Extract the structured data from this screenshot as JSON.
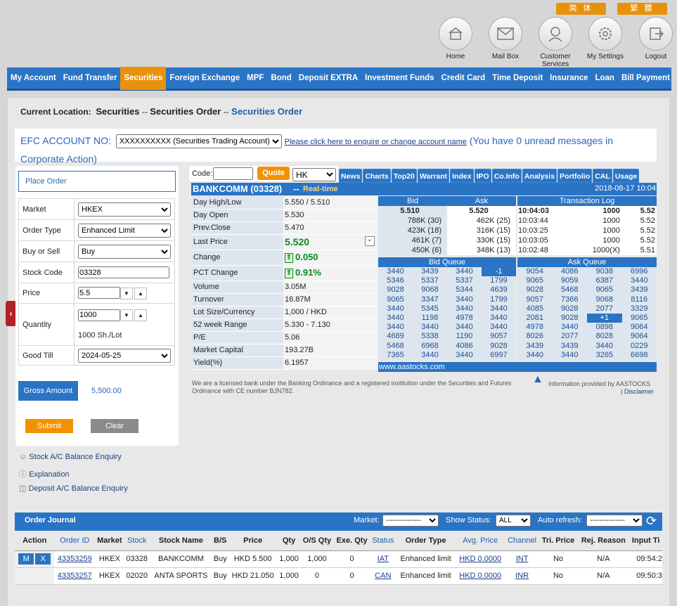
{
  "lang": [
    "简 体",
    "繁 體"
  ],
  "top_icons": [
    {
      "icon": "home-icon",
      "label": "Home"
    },
    {
      "icon": "mailbox-icon",
      "label": "Mail Box"
    },
    {
      "icon": "customer-service-icon",
      "label": "Customer Services"
    },
    {
      "icon": "settings-icon",
      "label": "My Settings"
    },
    {
      "icon": "logout-icon",
      "label": "Logout"
    }
  ],
  "nav": [
    "My Account",
    "Fund Transfer",
    "Securities",
    "Foreign Exchange",
    "MPF",
    "Bond",
    "Deposit EXTRA",
    "Investment Funds",
    "Credit Card",
    "Time Deposit",
    "Insurance",
    "Loan",
    "Bill Payment"
  ],
  "nav_active": "Securities",
  "location": {
    "label": "Current Location:",
    "l1": "Securities",
    "sep": "--",
    "l2": "Securities Order",
    "current": "Securities Order"
  },
  "efc": {
    "label": "EFC ACCOUNT NO:",
    "account": "XXXXXXXXXX (Securities Trading Account)",
    "link": "Please click here to enquire or change account name",
    "msg_pre": "(You have",
    "msg_count": "0",
    "msg_post": "unread messages in Corporate Action)"
  },
  "order": {
    "title": "Place Order",
    "market_label": "Market",
    "market": "HKEX",
    "type_label": "Order Type",
    "type": "Enhanced Limit",
    "bs_label": "Buy or Sell",
    "bs": "Buy",
    "code_label": "Stock Code",
    "code": "03328",
    "price_label": "Price",
    "price": "5.5",
    "qty_label": "Quantity",
    "qty": "1000",
    "lot": "1000 Sh./Lot",
    "till_label": "Good Till",
    "till": "2024-05-25",
    "gross_label": "Gross Amount",
    "gross": "5,500.00",
    "submit": "Submit",
    "clear": "Clear"
  },
  "links": [
    "Stock A/C Balance Enquiry",
    "Explanation",
    "Deposit A/C Balance Enquiry"
  ],
  "quote": {
    "code_label": "Code:",
    "button": "Quote",
    "market": "HK"
  },
  "tabs": [
    "News",
    "Charts",
    "Top20",
    "Warrant",
    "Index",
    "IPO",
    "Co.Info",
    "Analysis",
    "Portfolio",
    "CAL",
    "Usage"
  ],
  "stock": {
    "name": "BANKCOMM (03328)",
    "sep": "--",
    "rt": "Real-time",
    "time": "2018-08-17 10:04"
  },
  "stats": [
    [
      "Day High/Low",
      "5.550 / 5.510"
    ],
    [
      "Day Open",
      "5.530"
    ],
    [
      "Prev.Close",
      "5.470"
    ],
    [
      "Last Price",
      "5.520"
    ],
    [
      "Change",
      "0.050"
    ],
    [
      "PCT Change",
      "0.91%"
    ],
    [
      "Volume",
      "3.05M"
    ],
    [
      "Turnover",
      "16.87M"
    ],
    [
      "Lot Size/Currency",
      "1,000 / HKD"
    ],
    [
      "52 week Range",
      "5.330 - 7.130"
    ],
    [
      "P/E",
      "5.06"
    ],
    [
      "Market Capital",
      "193.27B"
    ],
    [
      "Yield(%)",
      "6.1957"
    ]
  ],
  "bid_ask": {
    "bid_h": "Bid",
    "ask_h": "Ask",
    "bid": "5.510",
    "ask": "5.520",
    "rows": [
      [
        "788K (30)",
        "462K (25)"
      ],
      [
        "423K (18)",
        "316K (15)"
      ],
      [
        "461K (7)",
        "330K (15)"
      ],
      [
        "450K (6)",
        "348K (13)"
      ]
    ]
  },
  "tlog": {
    "title": "Transaction Log",
    "rows": [
      [
        "10:04:03",
        "1000",
        "5.52"
      ],
      [
        "10:03:44",
        "1000",
        "5.52"
      ],
      [
        "10:03:25",
        "1000",
        "5.52"
      ],
      [
        "10:03:05",
        "1000",
        "5.52"
      ],
      [
        "10:02:48",
        "1000(X)",
        "5.51"
      ]
    ]
  },
  "bid_queue": {
    "title": "Bid Queue",
    "rows": [
      [
        "3440",
        "3439",
        "3440",
        "-1"
      ],
      [
        "5346",
        "5337",
        "5337",
        "1799"
      ],
      [
        "9028",
        "9068",
        "5344",
        "4639"
      ],
      [
        "9065",
        "3347",
        "3440",
        "1799"
      ],
      [
        "3440",
        "5345",
        "3440",
        "3440"
      ],
      [
        "3440",
        "1198",
        "4978",
        "3440"
      ],
      [
        "3440",
        "3440",
        "3440",
        "3440"
      ],
      [
        "4689",
        "5338",
        "1190",
        "9057"
      ],
      [
        "5468",
        "6968",
        "4086",
        "9028"
      ],
      [
        "7365",
        "3440",
        "3440",
        "6997"
      ]
    ]
  },
  "ask_queue": {
    "title": "Ask Queue",
    "rows": [
      [
        "9054",
        "4086",
        "9038",
        "6996"
      ],
      [
        "9065",
        "9059",
        "6387",
        "3440"
      ],
      [
        "9028",
        "5468",
        "9065",
        "3439"
      ],
      [
        "9057",
        "7366",
        "9068",
        "8116"
      ],
      [
        "4085",
        "9028",
        "2077",
        "3329"
      ],
      [
        "2081",
        "9028",
        "+1",
        "9065"
      ],
      [
        "4978",
        "3440",
        "0898",
        "9064"
      ],
      [
        "8026",
        "2077",
        "8028",
        "9064"
      ],
      [
        "3439",
        "3439",
        "3440",
        "0229"
      ],
      [
        "3440",
        "3440",
        "3265",
        "6698"
      ]
    ]
  },
  "aastocks_url": "www.aastocks.com",
  "disclaimer": "We are a licensed bank under the Banking Ordinance and a registered institution under the Securities and Futures Ordinance with CE number BJN782.",
  "provided": "Information provided by AASTOCKS",
  "disclaimer_link": "| Disclaimer",
  "journal": {
    "title": "Order Journal",
    "market_label": "Market:",
    "market_val": "---------------",
    "status_label": "Show Status:",
    "status_val": "ALL",
    "refresh_label": "Auto refresh:",
    "refresh_val": "---------------",
    "headers": [
      "Action",
      "Order ID",
      "Market",
      "Stock",
      "Stock Name",
      "B/S",
      "Price",
      "Qty",
      "O/S Qty",
      "Exe. Qty",
      "Status",
      "Order Type",
      "Avg. Price",
      "Channel",
      "Tri. Price",
      "Rej. Reason",
      "Input Ti"
    ],
    "rows": [
      {
        "id": "43353259",
        "market": "HKEX",
        "stock": "03328",
        "name": "BANKCOMM",
        "bs": "Buy",
        "price": "HKD 5.500",
        "qty": "1,000",
        "os": "1,000",
        "exe": "0",
        "status": "IAT",
        "type": "Enhanced limit",
        "avg": "HKD 0.0000",
        "channel": "INT",
        "tri": "No",
        "rej": "N/A",
        "time": "09:54:2"
      },
      {
        "id": "43353257",
        "market": "HKEX",
        "stock": "02020",
        "name": "ANTA SPORTS",
        "bs": "Buy",
        "price": "HKD 21.050",
        "qty": "1,000",
        "os": "0",
        "exe": "0",
        "status": "CAN",
        "type": "Enhanced limit",
        "avg": "HKD 0.0000",
        "channel": "INR",
        "tri": "No",
        "rej": "N/A",
        "time": "09:50:3"
      }
    ],
    "action_m": "M",
    "action_x": "X"
  },
  "colors": {
    "nav_blue": "#2a74c5",
    "accent_orange": "#f39200",
    "up_green": "#0a8a1e"
  }
}
